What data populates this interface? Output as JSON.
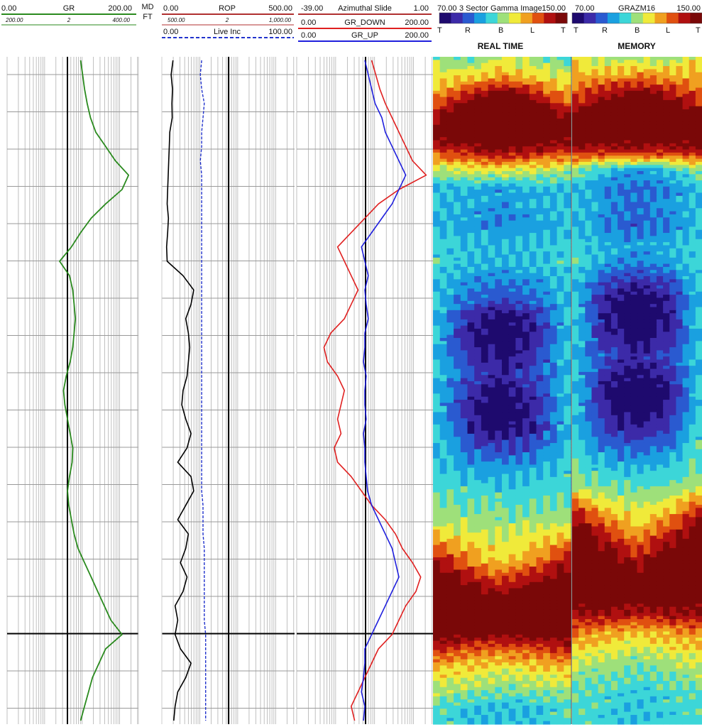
{
  "colors": {
    "gr": "#2a8a1e",
    "rop": "#000000",
    "rop_header": "#b03030",
    "live_inc": "#2233cc",
    "azimuthal": "#b03030",
    "gr_down": "#e02020",
    "gr_up": "#2020dd",
    "image_scale": [
      "#1e0a6e",
      "#3c2aa8",
      "#2a5ad0",
      "#1aa0e0",
      "#3cd6d8",
      "#9ee07a",
      "#f0ea3a",
      "#f0a020",
      "#e05010",
      "#b01010",
      "#7a0808"
    ]
  },
  "track1": {
    "gr": {
      "min": "0.00",
      "name": "GR",
      "max": "200.00"
    },
    "gr_backup": {
      "min": "200.00",
      "mid": "2",
      "max": "400.00"
    }
  },
  "depth_track": {
    "label1": "MD",
    "label2": "FT"
  },
  "track2": {
    "rop": {
      "min": "0.00",
      "name": "ROP",
      "max": "500.00"
    },
    "rop_backup": {
      "min": "500.00",
      "mid": "2",
      "max": "1,000.00"
    },
    "live_inc": {
      "min": "0.00",
      "name": "Live Inc",
      "max": "100.00"
    }
  },
  "track3": {
    "azimuthal": {
      "min": "-39.00",
      "name": "Azimuthal Slide",
      "max": "1.00"
    },
    "gr_down": {
      "min": "0.00",
      "name": "GR_DOWN",
      "max": "200.00"
    },
    "gr_up": {
      "min": "0.00",
      "name": "GR_UP",
      "max": "200.00"
    }
  },
  "image1": {
    "min": "70.00",
    "name": "3 Sector Gamma Image",
    "max": "150.00",
    "ticks": [
      "T",
      "R",
      "B",
      "L",
      "T"
    ],
    "title": "REAL TIME"
  },
  "image2": {
    "min": "70.00",
    "name": "GRAZM16",
    "max": "150.00",
    "ticks": [
      "T",
      "R",
      "B",
      "L",
      "T"
    ],
    "title": "MEMORY"
  },
  "chart_data": {
    "type": "line",
    "n_points": 47,
    "gr": [
      112,
      115,
      118,
      122,
      127,
      135,
      150,
      165,
      185,
      175,
      150,
      128,
      112,
      98,
      80,
      95,
      100,
      102,
      104,
      102,
      100,
      96,
      90,
      86,
      88,
      92,
      96,
      100,
      99,
      95,
      92,
      94,
      98,
      102,
      108,
      118,
      128,
      138,
      148,
      158,
      175,
      150,
      140,
      130,
      124,
      118,
      112
    ],
    "rop": [
      42,
      35,
      40,
      38,
      39,
      30,
      28,
      26,
      24,
      22,
      20,
      25,
      22,
      18,
      20,
      80,
      120,
      110,
      90,
      100,
      105,
      100,
      95,
      80,
      75,
      90,
      110,
      95,
      60,
      110,
      120,
      90,
      60,
      100,
      90,
      70,
      95,
      80,
      50,
      60,
      50,
      70,
      110,
      90,
      60,
      50,
      45
    ],
    "live_inc": [
      30,
      29,
      30,
      32,
      31,
      30,
      30,
      29,
      30,
      30,
      30,
      30,
      30,
      30,
      30,
      30,
      30,
      30,
      30,
      30,
      30,
      30,
      30,
      30,
      30,
      30,
      30,
      30,
      30,
      30,
      30,
      31,
      31,
      31,
      32,
      32,
      32,
      32,
      32,
      32,
      33,
      33,
      33,
      33,
      33,
      33,
      33
    ],
    "gr_down": [
      110,
      116,
      122,
      130,
      140,
      150,
      160,
      170,
      190,
      150,
      120,
      100,
      80,
      60,
      70,
      80,
      90,
      80,
      70,
      50,
      40,
      45,
      60,
      70,
      65,
      60,
      65,
      55,
      60,
      80,
      95,
      110,
      130,
      145,
      155,
      170,
      182,
      175,
      160,
      150,
      140,
      120,
      110,
      100,
      90,
      80,
      85
    ],
    "gr_up": [
      100,
      105,
      110,
      115,
      125,
      130,
      140,
      150,
      160,
      150,
      140,
      125,
      110,
      95,
      100,
      105,
      100,
      102,
      105,
      100,
      100,
      98,
      102,
      100,
      100,
      102,
      98,
      100,
      100,
      102,
      104,
      110,
      120,
      130,
      140,
      145,
      150,
      140,
      130,
      120,
      110,
      100,
      100,
      98,
      95,
      100,
      98
    ],
    "image_sectors": [
      0,
      0.25,
      0.5,
      0.75,
      1
    ],
    "image_realtime": [
      [
        110,
        105,
        115,
        110,
        105
      ],
      [
        115,
        120,
        125,
        120,
        115
      ],
      [
        125,
        140,
        150,
        140,
        125
      ],
      [
        140,
        155,
        155,
        155,
        140
      ],
      [
        150,
        155,
        155,
        155,
        150
      ],
      [
        135,
        140,
        145,
        140,
        135
      ],
      [
        112,
        115,
        118,
        115,
        112
      ],
      [
        100,
        98,
        95,
        98,
        100
      ],
      [
        100,
        97,
        95,
        97,
        100
      ],
      [
        100,
        95,
        92,
        95,
        100
      ],
      [
        102,
        100,
        98,
        100,
        102
      ],
      [
        103,
        100,
        98,
        100,
        103
      ],
      [
        100,
        95,
        92,
        95,
        100
      ],
      [
        100,
        90,
        85,
        90,
        100
      ],
      [
        100,
        80,
        72,
        80,
        100
      ],
      [
        100,
        78,
        70,
        78,
        100
      ],
      [
        100,
        80,
        75,
        80,
        100
      ],
      [
        100,
        85,
        80,
        85,
        100
      ],
      [
        100,
        82,
        72,
        82,
        100
      ],
      [
        100,
        78,
        70,
        78,
        100
      ],
      [
        100,
        80,
        72,
        80,
        100
      ],
      [
        100,
        88,
        84,
        88,
        100
      ],
      [
        102,
        96,
        94,
        96,
        102
      ],
      [
        104,
        102,
        100,
        102,
        104
      ],
      [
        108,
        106,
        105,
        106,
        108
      ],
      [
        112,
        110,
        110,
        110,
        112
      ],
      [
        125,
        118,
        115,
        118,
        125
      ],
      [
        140,
        125,
        118,
        125,
        140
      ],
      [
        150,
        140,
        132,
        140,
        150
      ],
      [
        155,
        150,
        145,
        150,
        155
      ],
      [
        155,
        155,
        150,
        155,
        155
      ],
      [
        150,
        148,
        145,
        148,
        150
      ],
      [
        135,
        130,
        128,
        130,
        135
      ],
      [
        120,
        118,
        116,
        118,
        120
      ],
      [
        112,
        110,
        108,
        110,
        112
      ],
      [
        105,
        100,
        100,
        100,
        105
      ]
    ],
    "image_memory": [
      [
        118,
        110,
        112,
        110,
        118
      ],
      [
        122,
        125,
        128,
        125,
        122
      ],
      [
        132,
        142,
        150,
        142,
        132
      ],
      [
        145,
        155,
        155,
        155,
        145
      ],
      [
        152,
        155,
        152,
        155,
        152
      ],
      [
        140,
        138,
        140,
        138,
        140
      ],
      [
        110,
        100,
        96,
        100,
        110
      ],
      [
        100,
        92,
        90,
        92,
        100
      ],
      [
        100,
        95,
        90,
        95,
        100
      ],
      [
        100,
        92,
        88,
        92,
        100
      ],
      [
        102,
        98,
        96,
        98,
        102
      ],
      [
        104,
        96,
        92,
        96,
        104
      ],
      [
        100,
        86,
        80,
        86,
        100
      ],
      [
        100,
        78,
        70,
        78,
        100
      ],
      [
        102,
        76,
        70,
        76,
        102
      ],
      [
        100,
        80,
        74,
        80,
        100
      ],
      [
        100,
        86,
        80,
        86,
        100
      ],
      [
        100,
        80,
        74,
        80,
        100
      ],
      [
        102,
        74,
        68,
        74,
        102
      ],
      [
        100,
        78,
        70,
        78,
        100
      ],
      [
        102,
        84,
        78,
        84,
        102
      ],
      [
        104,
        92,
        88,
        92,
        104
      ],
      [
        106,
        100,
        96,
        100,
        106
      ],
      [
        110,
        106,
        104,
        106,
        110
      ],
      [
        130,
        116,
        112,
        116,
        130
      ],
      [
        145,
        128,
        118,
        128,
        145
      ],
      [
        152,
        140,
        128,
        140,
        152
      ],
      [
        155,
        150,
        140,
        150,
        155
      ],
      [
        155,
        155,
        148,
        155,
        155
      ],
      [
        150,
        152,
        150,
        152,
        150
      ],
      [
        140,
        142,
        138,
        142,
        140
      ],
      [
        128,
        125,
        120,
        125,
        128
      ],
      [
        118,
        116,
        112,
        116,
        118
      ],
      [
        112,
        108,
        106,
        108,
        112
      ],
      [
        106,
        104,
        102,
        104,
        106
      ],
      [
        104,
        102,
        100,
        102,
        104
      ]
    ]
  }
}
